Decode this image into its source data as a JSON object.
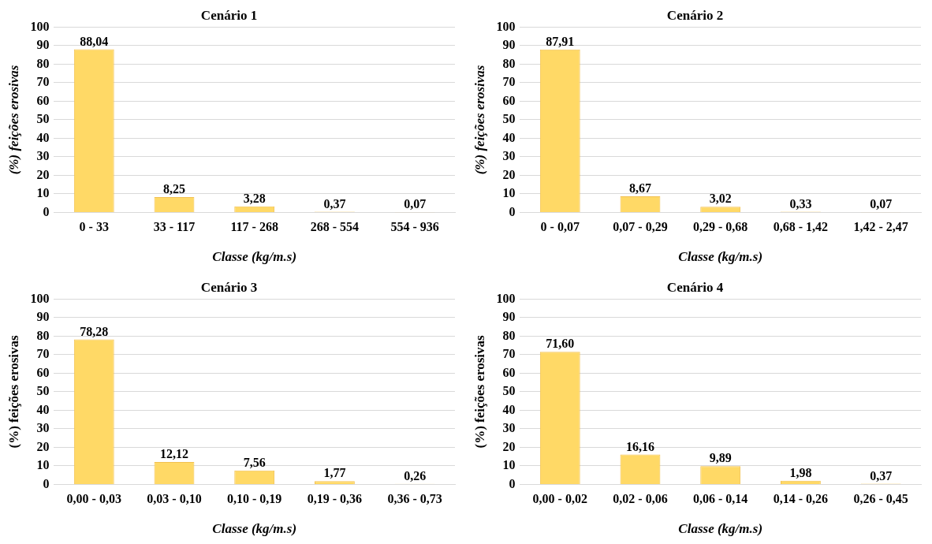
{
  "chart_data": [
    {
      "type": "bar",
      "title": "Cenário 1",
      "xlabel": "Classe (kg/m.s)",
      "ylabel": "(%) feições erosivas",
      "categories": [
        "0 - 33",
        "33 - 117",
        "117 - 268",
        "268 - 554",
        "554 - 936"
      ],
      "values": [
        88.04,
        8.25,
        3.28,
        0.37,
        0.07
      ],
      "value_labels": [
        "88,04",
        "8,25",
        "3,28",
        "0,37",
        "0,07"
      ],
      "color": "#ffd966",
      "ylim": [
        0,
        100
      ],
      "yticks": [
        0,
        10,
        20,
        30,
        40,
        50,
        60,
        70,
        80,
        90,
        100
      ],
      "grid": "y",
      "legend": false
    },
    {
      "type": "bar",
      "title": "Cenário 2",
      "xlabel": "Classe (kg/m.s)",
      "ylabel": "(%) feições erosivas",
      "categories": [
        "0 - 0,07",
        "0,07 - 0,29",
        "0,29 - 0,68",
        "0,68 - 1,42",
        "1,42 - 2,47"
      ],
      "values": [
        87.91,
        8.67,
        3.02,
        0.33,
        0.07
      ],
      "value_labels": [
        "87,91",
        "8,67",
        "3,02",
        "0,33",
        "0,07"
      ],
      "color": "#ffd966",
      "ylim": [
        0,
        100
      ],
      "yticks": [
        0,
        10,
        20,
        30,
        40,
        50,
        60,
        70,
        80,
        90,
        100
      ],
      "grid": "y",
      "legend": false
    },
    {
      "type": "bar",
      "title": "Cenário 3",
      "xlabel": "Classe (kg/m.s)",
      "ylabel": "(%) feições erosivas",
      "categories": [
        "0,00 - 0,03",
        "0,03 - 0,10",
        "0,10 - 0,19",
        "0,19 - 0,36",
        "0,36 - 0,73"
      ],
      "values": [
        78.28,
        12.12,
        7.56,
        1.77,
        0.26
      ],
      "value_labels": [
        "78,28",
        "12,12",
        "7,56",
        "1,77",
        "0,26"
      ],
      "color": "#ffd966",
      "ylim": [
        0,
        100
      ],
      "yticks": [
        0,
        10,
        20,
        30,
        40,
        50,
        60,
        70,
        80,
        90,
        100
      ],
      "grid": "y",
      "legend": false
    },
    {
      "type": "bar",
      "title": "Cenário 4",
      "xlabel": "Classe (kg/m.s)",
      "ylabel": "(%) feições erosivas",
      "categories": [
        "0,00 - 0,02",
        "0,02 - 0,06",
        "0,06 - 0,14",
        "0,14 - 0,26",
        "0,26 - 0,45"
      ],
      "values": [
        71.6,
        16.16,
        9.89,
        1.98,
        0.37
      ],
      "value_labels": [
        "71,60",
        "16,16",
        "9,89",
        "1,98",
        "0,37"
      ],
      "color": "#ffd966",
      "ylim": [
        0,
        100
      ],
      "yticks": [
        0,
        10,
        20,
        30,
        40,
        50,
        60,
        70,
        80,
        90,
        100
      ],
      "grid": "y",
      "legend": false
    }
  ]
}
